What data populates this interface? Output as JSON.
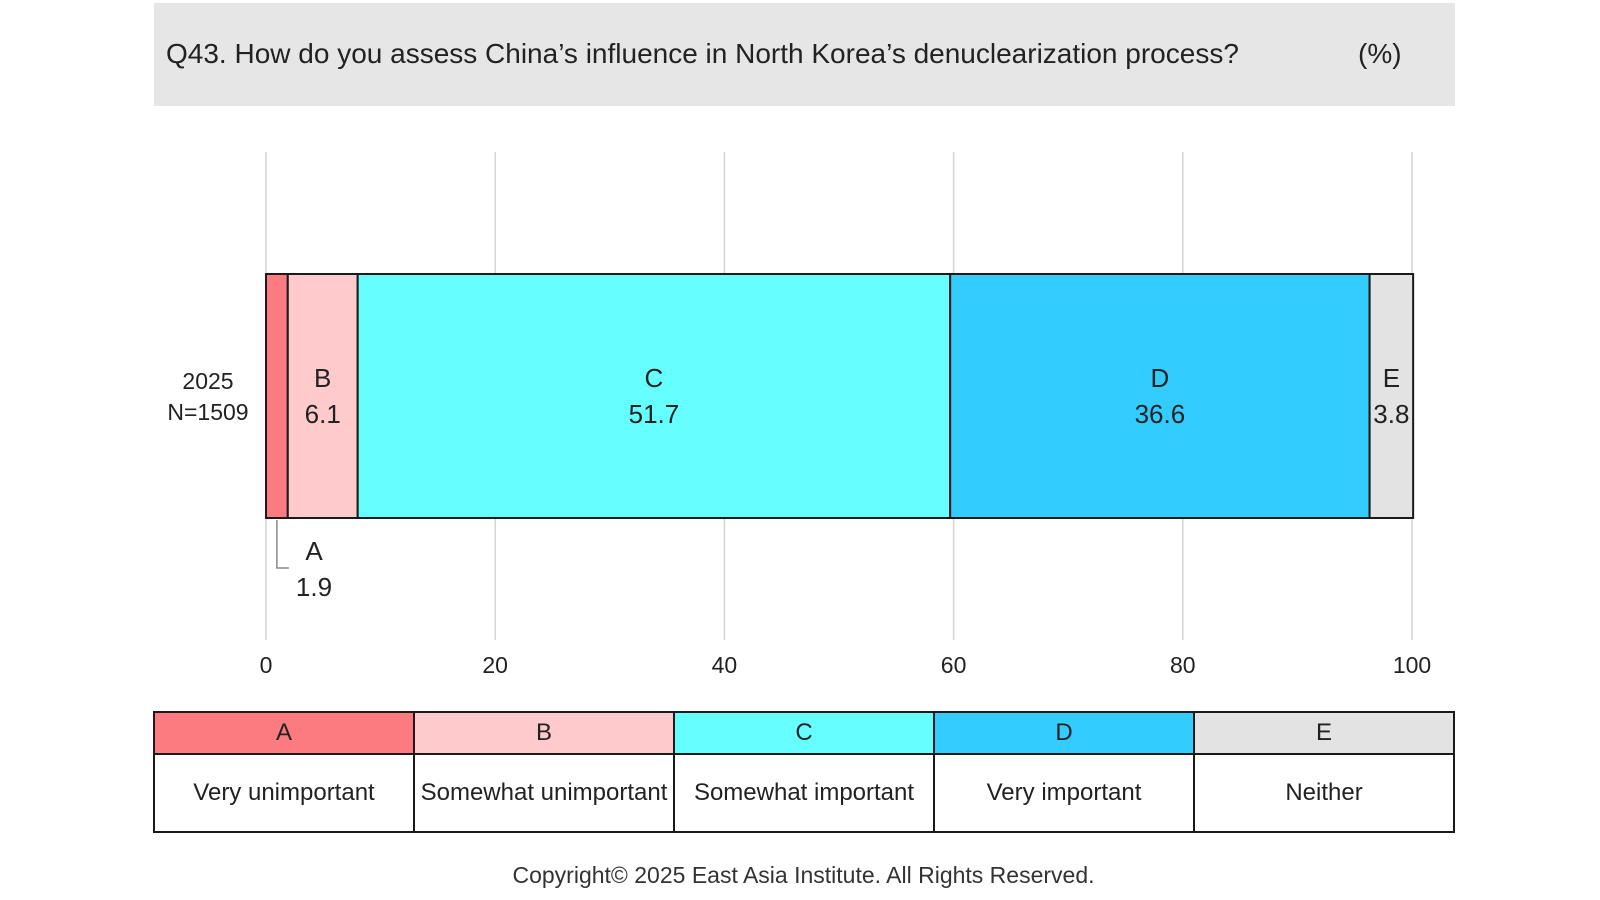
{
  "chart_data": {
    "type": "bar",
    "orientation": "horizontal",
    "stacked": true,
    "title": "Q43. How do you assess China’s influence in North Korea’s denuclearization process?",
    "unit": "(%)",
    "row_label": "2025",
    "row_sample": "N=1509",
    "xlim": [
      0,
      100
    ],
    "x_ticks": [
      "0",
      "20",
      "40",
      "60",
      "80",
      "100"
    ],
    "grid": true,
    "series": [
      {
        "code": "A",
        "label": "Very unimportant",
        "value": 1.9,
        "color": "#fb7b80"
      },
      {
        "code": "B",
        "label": "Somewhat unimportant",
        "value": 6.1,
        "color": "#fecacb"
      },
      {
        "code": "C",
        "label": "Somewhat important",
        "value": 51.7,
        "color": "#66ffff"
      },
      {
        "code": "D",
        "label": "Very important",
        "value": 36.6,
        "color": "#33ccff"
      },
      {
        "code": "E",
        "label": "Neither",
        "value": 3.8,
        "color": "#e3e3e3"
      }
    ]
  },
  "footer": {
    "copyright": "Copyright© 2025 East Asia Institute. All Rights Reserved."
  }
}
